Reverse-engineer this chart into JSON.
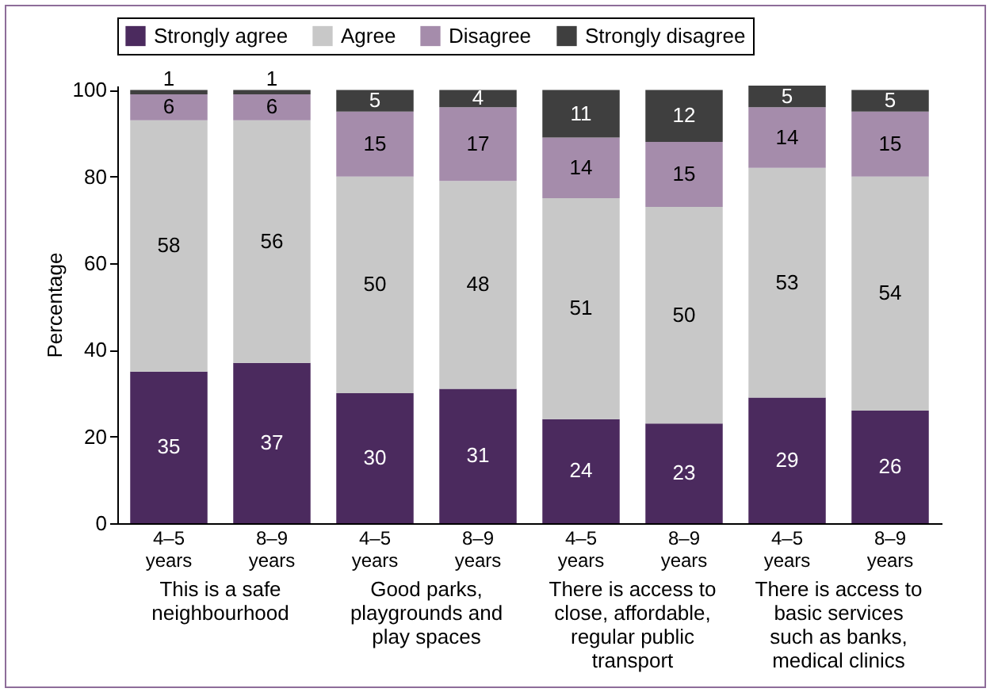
{
  "chart_data": {
    "type": "bar",
    "stacked": true,
    "ylabel": "Percentage",
    "categories": [
      "4–5 years",
      "8–9 years",
      "4–5 years",
      "8–9 years",
      "4–5 years",
      "8–9 years",
      "4–5 years",
      "8–9 years"
    ],
    "series": [
      {
        "name": "Strongly agree",
        "color": "#4b2a5e",
        "values": [
          35,
          37,
          30,
          31,
          24,
          23,
          29,
          26
        ]
      },
      {
        "name": "Agree",
        "color": "#c8c8c8",
        "values": [
          58,
          56,
          50,
          48,
          51,
          50,
          53,
          54
        ]
      },
      {
        "name": "Disagree",
        "color": "#a58cab",
        "values": [
          6,
          6,
          15,
          17,
          14,
          15,
          14,
          15
        ]
      },
      {
        "name": "Strongly disagree",
        "color": "#3f3f3f",
        "values": [
          1,
          1,
          5,
          4,
          11,
          12,
          5,
          5
        ]
      }
    ],
    "ylim": [
      0,
      101
    ],
    "yticks": [
      0,
      20,
      40,
      60,
      80,
      100
    ],
    "grid": false,
    "legend": "top",
    "data_labels": true,
    "annotations": [
      "This is a safe neighbourhood",
      "Good parks, playgrounds and play spaces",
      "There is access to close, affordable, regular public transport",
      "There is access to basic services such as banks, medical clinics"
    ]
  }
}
